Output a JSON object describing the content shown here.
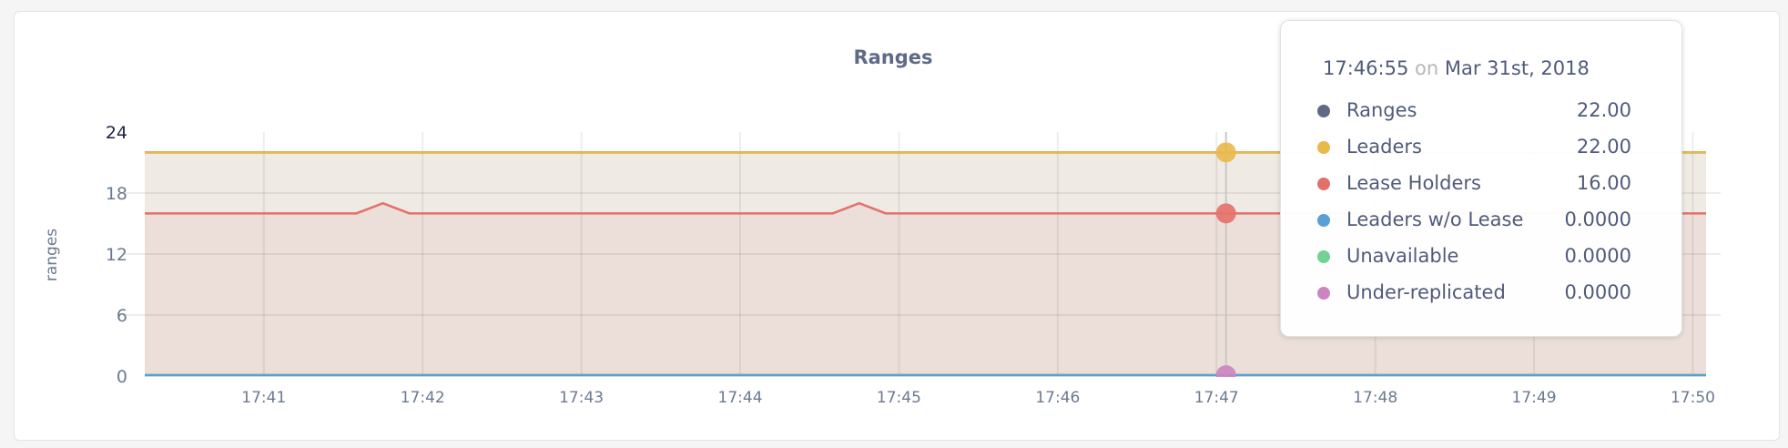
{
  "chart_data": {
    "type": "area",
    "title": "Ranges",
    "ylabel": "ranges",
    "xlabel": "",
    "ylim": [
      0,
      24
    ],
    "yticks": [
      "0",
      "6",
      "12",
      "18",
      "24"
    ],
    "xlim": [
      "17:40:15",
      "17:50:05"
    ],
    "xticks": [
      "17:41",
      "17:42",
      "17:43",
      "17:44",
      "17:45",
      "17:46",
      "17:47",
      "17:48",
      "17:49",
      "17:50"
    ],
    "grid": true,
    "series": [
      {
        "name": "Ranges",
        "color": "#5f6a87",
        "points": [
          [
            "17:40:15",
            22
          ],
          [
            "17:50:05",
            22
          ]
        ]
      },
      {
        "name": "Leaders",
        "color": "#e8b94b",
        "fill": "#efebe4",
        "points": [
          [
            "17:40:15",
            22
          ],
          [
            "17:50:05",
            22
          ]
        ]
      },
      {
        "name": "Lease Holders",
        "color": "#e5706a",
        "fill": "#ecdfd9",
        "points": [
          [
            "17:40:15",
            16
          ],
          [
            "17:41:35",
            16
          ],
          [
            "17:41:45",
            17
          ],
          [
            "17:41:55",
            16
          ],
          [
            "17:44:35",
            16
          ],
          [
            "17:44:45",
            17
          ],
          [
            "17:44:55",
            16
          ],
          [
            "17:50:05",
            16
          ]
        ]
      },
      {
        "name": "Leaders w/o Lease",
        "color": "#5b9fd4",
        "points": [
          [
            "17:40:15",
            0
          ],
          [
            "17:50:05",
            0
          ]
        ]
      },
      {
        "name": "Unavailable",
        "color": "#70d393",
        "points": [
          [
            "17:40:15",
            0
          ],
          [
            "17:50:05",
            0
          ]
        ]
      },
      {
        "name": "Under-replicated",
        "color": "#cb85c0",
        "points": [
          [
            "17:40:15",
            0
          ],
          [
            "17:50:05",
            0
          ]
        ]
      }
    ],
    "hover": {
      "time": "17:46:55"
    }
  },
  "tooltip": {
    "time": "17:46:55",
    "on": "on",
    "date": "Mar 31st, 2018",
    "rows": [
      {
        "label": "Ranges",
        "value": "22.00",
        "color": "#5f6a87"
      },
      {
        "label": "Leaders",
        "value": "22.00",
        "color": "#e8b94b"
      },
      {
        "label": "Lease Holders",
        "value": "16.00",
        "color": "#e5706a"
      },
      {
        "label": "Leaders w/o Lease",
        "value": "0.0000",
        "color": "#5b9fd4"
      },
      {
        "label": "Unavailable",
        "value": "0.0000",
        "color": "#70d393"
      },
      {
        "label": "Under-replicated",
        "value": "0.0000",
        "color": "#cb85c0"
      }
    ]
  }
}
